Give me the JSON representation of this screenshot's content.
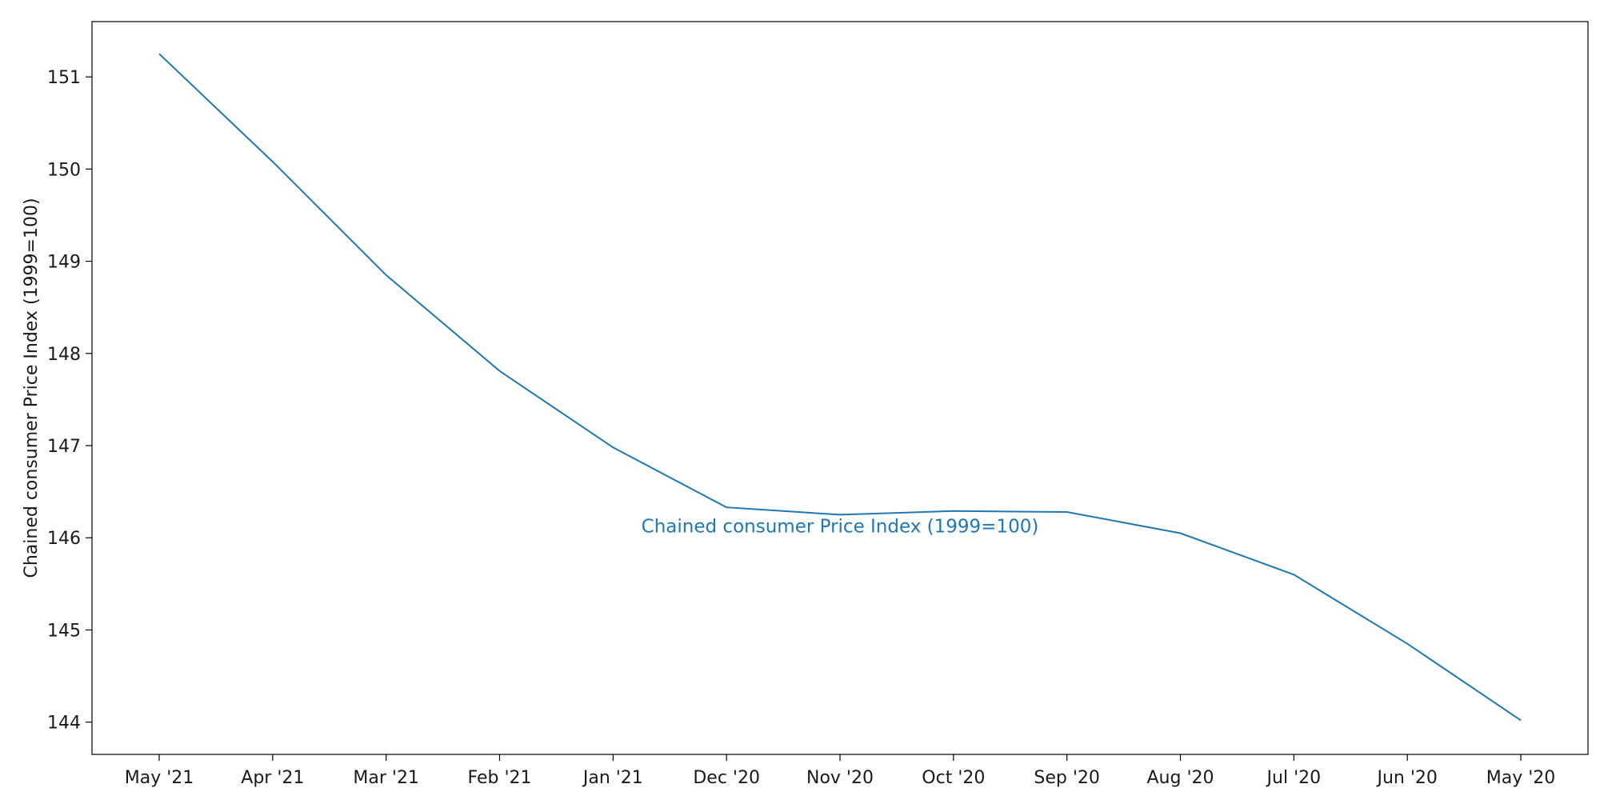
{
  "chart_data": {
    "type": "line",
    "title": "",
    "xlabel": "",
    "ylabel": "Chained consumer Price Index (1999=100)",
    "x": [
      "May '21",
      "Apr '21",
      "Mar '21",
      "Feb '21",
      "Jan '21",
      "Dec '20",
      "Nov '20",
      "Oct '20",
      "Sep '20",
      "Aug '20",
      "Jul '20",
      "Jun '20",
      "May '20"
    ],
    "series": [
      {
        "name": "Chained consumer Price Index (1999=100)",
        "values": [
          151.25,
          150.08,
          148.85,
          147.81,
          146.98,
          146.33,
          146.25,
          146.29,
          146.28,
          146.05,
          145.6,
          144.85,
          144.02
        ]
      }
    ],
    "yticks": [
      "144",
      "145",
      "146",
      "147",
      "148",
      "149",
      "150",
      "151"
    ],
    "ylim": [
      143.65,
      151.6
    ],
    "grid": false,
    "legend": "none",
    "annotation": "Chained consumer Price Index (1999=100)",
    "colors": {
      "line": "#1f77b4",
      "axis": "#000000"
    }
  }
}
